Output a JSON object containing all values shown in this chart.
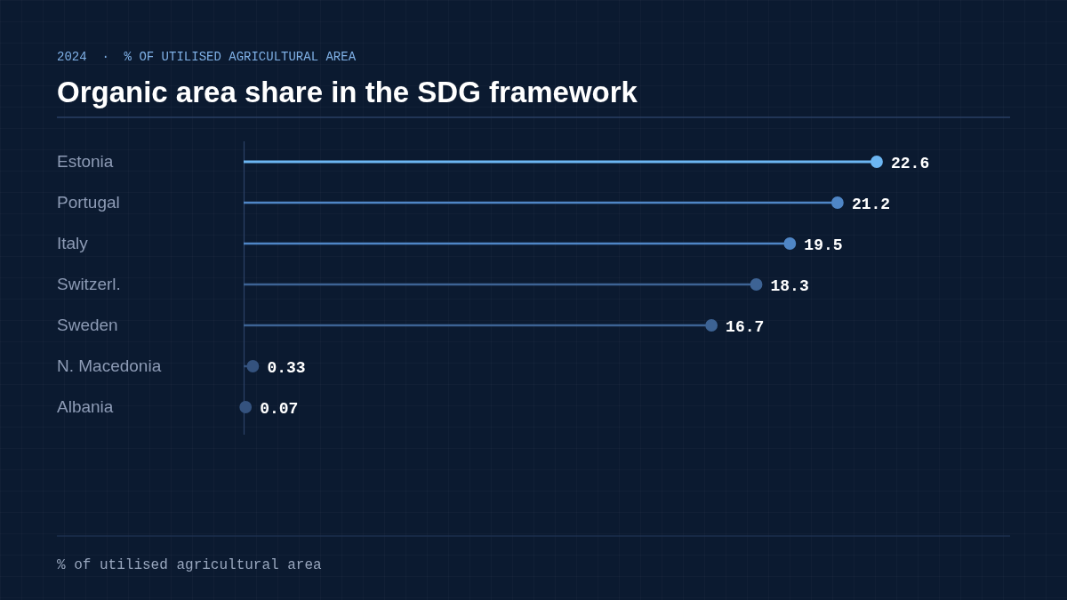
{
  "chart_data": {
    "type": "lollipop",
    "orientation": "horizontal",
    "title": "Organic area share in the SDG framework",
    "subtitle": "2024  ·  % OF UTILISED AGRICULTURAL AREA",
    "annotations": [
      "% of utilised agricultural area"
    ],
    "categories": [
      "Estonia",
      "Portugal",
      "Italy",
      "Switzerl.",
      "Sweden",
      "N. Macedonia",
      "Albania"
    ],
    "values": [
      22.6,
      21.2,
      19.5,
      18.3,
      16.7,
      0.33,
      0.07
    ],
    "colors": [
      "#6cb6f2",
      "#4f86c6",
      "#4f86c6",
      "#3d6394",
      "#3d6394",
      "#34527e",
      "#34527e"
    ],
    "tick_labels": "y",
    "data_labels": true,
    "marker": "circle",
    "grid": true
  }
}
